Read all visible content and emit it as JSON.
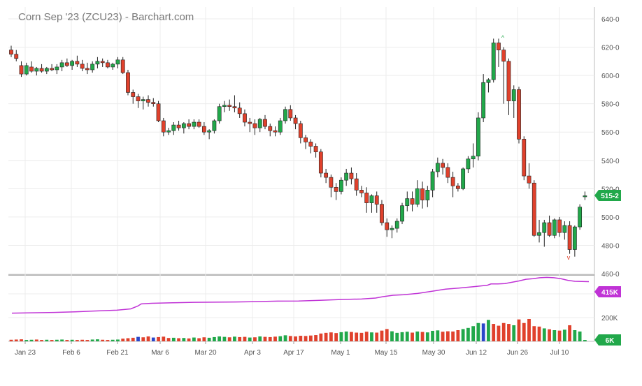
{
  "chart_data": {
    "type": "candlestick",
    "title": "Corn Sep '23 (ZCU23) - Barchart.com",
    "price_axis": {
      "ticks": [
        "640-0",
        "620-0",
        "600-0",
        "580-0",
        "560-0",
        "540-0",
        "520-0",
        "500-0",
        "480-0",
        "460-0"
      ],
      "ylim": [
        460,
        640
      ]
    },
    "volume_axis": {
      "ticks": [
        "200K"
      ],
      "open_interest_label": "415K",
      "volume_label": "6K"
    },
    "x_ticks": [
      "Jan 23",
      "Feb 6",
      "Feb 21",
      "Mar 6",
      "Mar 20",
      "Apr 3",
      "Apr 17",
      "May 1",
      "May 15",
      "May 30",
      "Jun 12",
      "Jun 26",
      "Jul 10"
    ],
    "last_price_label": "515-2",
    "last_price": 515.25,
    "colors": {
      "up": "#21a84a",
      "down": "#e0412c",
      "open_interest": "#c033d6",
      "neutral": "#2b47c9"
    },
    "grid": true,
    "candles": [
      [
        618,
        621,
        613,
        615
      ],
      [
        615,
        618,
        610,
        612
      ],
      [
        607,
        610,
        599,
        601
      ],
      [
        601,
        609,
        600,
        607
      ],
      [
        606,
        610,
        602,
        603
      ],
      [
        603,
        606,
        600,
        605
      ],
      [
        605,
        608,
        602,
        603
      ],
      [
        603,
        606,
        601,
        605
      ],
      [
        605,
        608,
        603,
        604
      ],
      [
        604,
        608,
        601,
        606
      ],
      [
        606,
        611,
        603,
        609
      ],
      [
        609,
        612,
        606,
        607
      ],
      [
        607,
        611,
        604,
        610
      ],
      [
        610,
        614,
        606,
        608
      ],
      [
        608,
        611,
        603,
        605
      ],
      [
        605,
        609,
        601,
        604
      ],
      [
        604,
        610,
        602,
        608
      ],
      [
        608,
        613,
        605,
        610
      ],
      [
        610,
        612,
        606,
        609
      ],
      [
        609,
        611,
        605,
        606
      ],
      [
        606,
        609,
        604,
        608
      ],
      [
        608,
        613,
        605,
        611
      ],
      [
        611,
        613,
        601,
        602
      ],
      [
        602,
        604,
        586,
        588
      ],
      [
        588,
        590,
        580,
        585
      ],
      [
        585,
        587,
        577,
        582
      ],
      [
        582,
        585,
        576,
        583
      ],
      [
        583,
        586,
        578,
        581
      ],
      [
        581,
        584,
        578,
        580
      ],
      [
        580,
        582,
        567,
        568
      ],
      [
        568,
        570,
        557,
        560
      ],
      [
        560,
        563,
        558,
        561
      ],
      [
        561,
        567,
        558,
        565
      ],
      [
        565,
        568,
        561,
        563
      ],
      [
        563,
        567,
        559,
        566
      ],
      [
        566,
        569,
        562,
        564
      ],
      [
        564,
        569,
        562,
        567
      ],
      [
        567,
        569,
        563,
        564
      ],
      [
        564,
        567,
        558,
        560
      ],
      [
        560,
        562,
        555,
        561
      ],
      [
        561,
        569,
        559,
        568
      ],
      [
        568,
        580,
        566,
        578
      ],
      [
        578,
        582,
        574,
        579
      ],
      [
        579,
        583,
        575,
        578
      ],
      [
        578,
        586,
        574,
        577
      ],
      [
        577,
        581,
        570,
        573
      ],
      [
        573,
        576,
        564,
        567
      ],
      [
        567,
        570,
        560,
        566
      ],
      [
        566,
        569,
        558,
        563
      ],
      [
        563,
        570,
        560,
        569
      ],
      [
        569,
        572,
        562,
        564
      ],
      [
        564,
        566,
        557,
        561
      ],
      [
        561,
        564,
        557,
        560
      ],
      [
        560,
        570,
        558,
        568
      ],
      [
        568,
        578,
        566,
        576
      ],
      [
        576,
        579,
        568,
        570
      ],
      [
        570,
        572,
        562,
        566
      ],
      [
        566,
        568,
        552,
        556
      ],
      [
        556,
        558,
        548,
        553
      ],
      [
        553,
        555,
        545,
        550
      ],
      [
        550,
        552,
        542,
        546
      ],
      [
        546,
        548,
        528,
        531
      ],
      [
        531,
        534,
        524,
        528
      ],
      [
        528,
        530,
        514,
        521
      ],
      [
        521,
        524,
        512,
        518
      ],
      [
        518,
        528,
        516,
        526
      ],
      [
        526,
        534,
        522,
        531
      ],
      [
        531,
        535,
        523,
        527
      ],
      [
        527,
        531,
        515,
        519
      ],
      [
        519,
        522,
        514,
        517
      ],
      [
        517,
        521,
        503,
        510
      ],
      [
        510,
        516,
        503,
        515
      ],
      [
        515,
        518,
        503,
        509
      ],
      [
        509,
        512,
        494,
        496
      ],
      [
        496,
        499,
        486,
        491
      ],
      [
        491,
        494,
        485,
        492
      ],
      [
        492,
        499,
        489,
        497
      ],
      [
        497,
        510,
        495,
        508
      ],
      [
        508,
        518,
        504,
        513
      ],
      [
        513,
        518,
        504,
        509
      ],
      [
        509,
        526,
        507,
        520
      ],
      [
        520,
        525,
        506,
        512
      ],
      [
        512,
        522,
        507,
        519
      ],
      [
        519,
        534,
        514,
        532
      ],
      [
        532,
        542,
        528,
        538
      ],
      [
        538,
        541,
        530,
        535
      ],
      [
        535,
        538,
        524,
        528
      ],
      [
        528,
        532,
        514,
        522
      ],
      [
        522,
        524,
        518,
        520
      ],
      [
        520,
        535,
        519,
        534
      ],
      [
        534,
        543,
        531,
        541
      ],
      [
        541,
        552,
        535,
        543
      ],
      [
        543,
        574,
        540,
        570
      ],
      [
        570,
        601,
        567,
        595
      ],
      [
        595,
        598,
        588,
        597
      ],
      [
        597,
        626,
        595,
        623
      ],
      [
        623,
        626,
        606,
        618
      ],
      [
        618,
        620,
        580,
        610
      ],
      [
        610,
        612,
        572,
        582
      ],
      [
        582,
        593,
        570,
        590
      ],
      [
        590,
        592,
        552,
        555
      ],
      [
        555,
        557,
        526,
        529
      ],
      [
        529,
        538,
        520,
        524
      ],
      [
        524,
        526,
        486,
        487
      ],
      [
        487,
        498,
        482,
        489
      ],
      [
        489,
        498,
        479,
        496
      ],
      [
        496,
        501,
        486,
        487
      ],
      [
        487,
        499,
        485,
        498
      ],
      [
        498,
        500,
        486,
        489
      ],
      [
        489,
        497,
        484,
        494
      ],
      [
        494,
        497,
        474,
        477
      ],
      [
        477,
        494,
        472,
        493
      ],
      [
        493,
        509,
        491,
        507
      ],
      [
        515,
        518,
        512,
        515
      ]
    ],
    "volume": [
      [
        7,
        "d"
      ],
      [
        8,
        "d"
      ],
      [
        9,
        "d"
      ],
      [
        6,
        "u"
      ],
      [
        7,
        "u"
      ],
      [
        8,
        "d"
      ],
      [
        6,
        "d"
      ],
      [
        7,
        "u"
      ],
      [
        6,
        "d"
      ],
      [
        7,
        "u"
      ],
      [
        8,
        "u"
      ],
      [
        6,
        "d"
      ],
      [
        7,
        "u"
      ],
      [
        6,
        "d"
      ],
      [
        7,
        "d"
      ],
      [
        6,
        "d"
      ],
      [
        8,
        "u"
      ],
      [
        9,
        "u"
      ],
      [
        7,
        "d"
      ],
      [
        6,
        "d"
      ],
      [
        7,
        "u"
      ],
      [
        8,
        "u"
      ],
      [
        12,
        "d"
      ],
      [
        14,
        "d"
      ],
      [
        16,
        "d"
      ],
      [
        20,
        "n"
      ],
      [
        18,
        "d"
      ],
      [
        22,
        "d"
      ],
      [
        17,
        "n"
      ],
      [
        19,
        "d"
      ],
      [
        21,
        "d"
      ],
      [
        15,
        "d"
      ],
      [
        16,
        "u"
      ],
      [
        14,
        "d"
      ],
      [
        15,
        "u"
      ],
      [
        13,
        "d"
      ],
      [
        17,
        "u"
      ],
      [
        14,
        "d"
      ],
      [
        18,
        "d"
      ],
      [
        16,
        "u"
      ],
      [
        19,
        "u"
      ],
      [
        22,
        "u"
      ],
      [
        20,
        "u"
      ],
      [
        18,
        "d"
      ],
      [
        21,
        "u"
      ],
      [
        19,
        "d"
      ],
      [
        20,
        "d"
      ],
      [
        17,
        "u"
      ],
      [
        18,
        "d"
      ],
      [
        22,
        "u"
      ],
      [
        20,
        "d"
      ],
      [
        19,
        "d"
      ],
      [
        21,
        "d"
      ],
      [
        23,
        "u"
      ],
      [
        27,
        "u"
      ],
      [
        24,
        "d"
      ],
      [
        22,
        "d"
      ],
      [
        25,
        "d"
      ],
      [
        24,
        "d"
      ],
      [
        26,
        "d"
      ],
      [
        28,
        "d"
      ],
      [
        35,
        "d"
      ],
      [
        38,
        "d"
      ],
      [
        40,
        "d"
      ],
      [
        37,
        "d"
      ],
      [
        41,
        "u"
      ],
      [
        44,
        "u"
      ],
      [
        42,
        "d"
      ],
      [
        39,
        "d"
      ],
      [
        38,
        "d"
      ],
      [
        43,
        "d"
      ],
      [
        40,
        "u"
      ],
      [
        39,
        "d"
      ],
      [
        48,
        "d"
      ],
      [
        55,
        "d"
      ],
      [
        45,
        "u"
      ],
      [
        38,
        "u"
      ],
      [
        41,
        "u"
      ],
      [
        43,
        "u"
      ],
      [
        39,
        "d"
      ],
      [
        44,
        "u"
      ],
      [
        42,
        "d"
      ],
      [
        40,
        "u"
      ],
      [
        47,
        "u"
      ],
      [
        49,
        "u"
      ],
      [
        43,
        "d"
      ],
      [
        45,
        "d"
      ],
      [
        44,
        "d"
      ],
      [
        50,
        "d"
      ],
      [
        55,
        "u"
      ],
      [
        60,
        "u"
      ],
      [
        68,
        "u"
      ],
      [
        82,
        "u"
      ],
      [
        80,
        "n"
      ],
      [
        96,
        "u"
      ],
      [
        78,
        "d"
      ],
      [
        70,
        "d"
      ],
      [
        82,
        "d"
      ],
      [
        78,
        "d"
      ],
      [
        72,
        "u"
      ],
      [
        98,
        "d"
      ],
      [
        82,
        "d"
      ],
      [
        100,
        "d"
      ],
      [
        68,
        "d"
      ],
      [
        66,
        "d"
      ],
      [
        58,
        "u"
      ],
      [
        54,
        "d"
      ],
      [
        50,
        "u"
      ],
      [
        48,
        "d"
      ],
      [
        52,
        "u"
      ],
      [
        72,
        "d"
      ],
      [
        50,
        "u"
      ],
      [
        44,
        "u"
      ],
      [
        6,
        "u"
      ]
    ],
    "open_interest": [
      [
        0,
        172
      ],
      [
        30,
        174
      ],
      [
        60,
        176
      ],
      [
        90,
        180
      ],
      [
        120,
        185
      ],
      [
        150,
        190
      ],
      [
        170,
        198
      ],
      [
        180,
        215
      ],
      [
        185,
        228
      ],
      [
        200,
        232
      ],
      [
        230,
        235
      ],
      [
        260,
        238
      ],
      [
        290,
        239
      ],
      [
        320,
        240
      ],
      [
        350,
        242
      ],
      [
        380,
        245
      ],
      [
        410,
        246
      ],
      [
        440,
        250
      ],
      [
        470,
        255
      ],
      [
        500,
        258
      ],
      [
        520,
        264
      ],
      [
        530,
        272
      ],
      [
        545,
        281
      ],
      [
        560,
        284
      ],
      [
        580,
        292
      ],
      [
        600,
        305
      ],
      [
        620,
        318
      ],
      [
        640,
        325
      ],
      [
        660,
        333
      ],
      [
        680,
        342
      ],
      [
        685,
        350
      ],
      [
        695,
        350
      ],
      [
        705,
        352
      ],
      [
        715,
        360
      ],
      [
        725,
        368
      ],
      [
        735,
        378
      ],
      [
        745,
        382
      ],
      [
        755,
        388
      ],
      [
        765,
        390
      ],
      [
        775,
        388
      ],
      [
        785,
        382
      ],
      [
        795,
        372
      ],
      [
        805,
        366
      ],
      [
        815,
        365
      ],
      [
        825,
        364
      ]
    ]
  }
}
